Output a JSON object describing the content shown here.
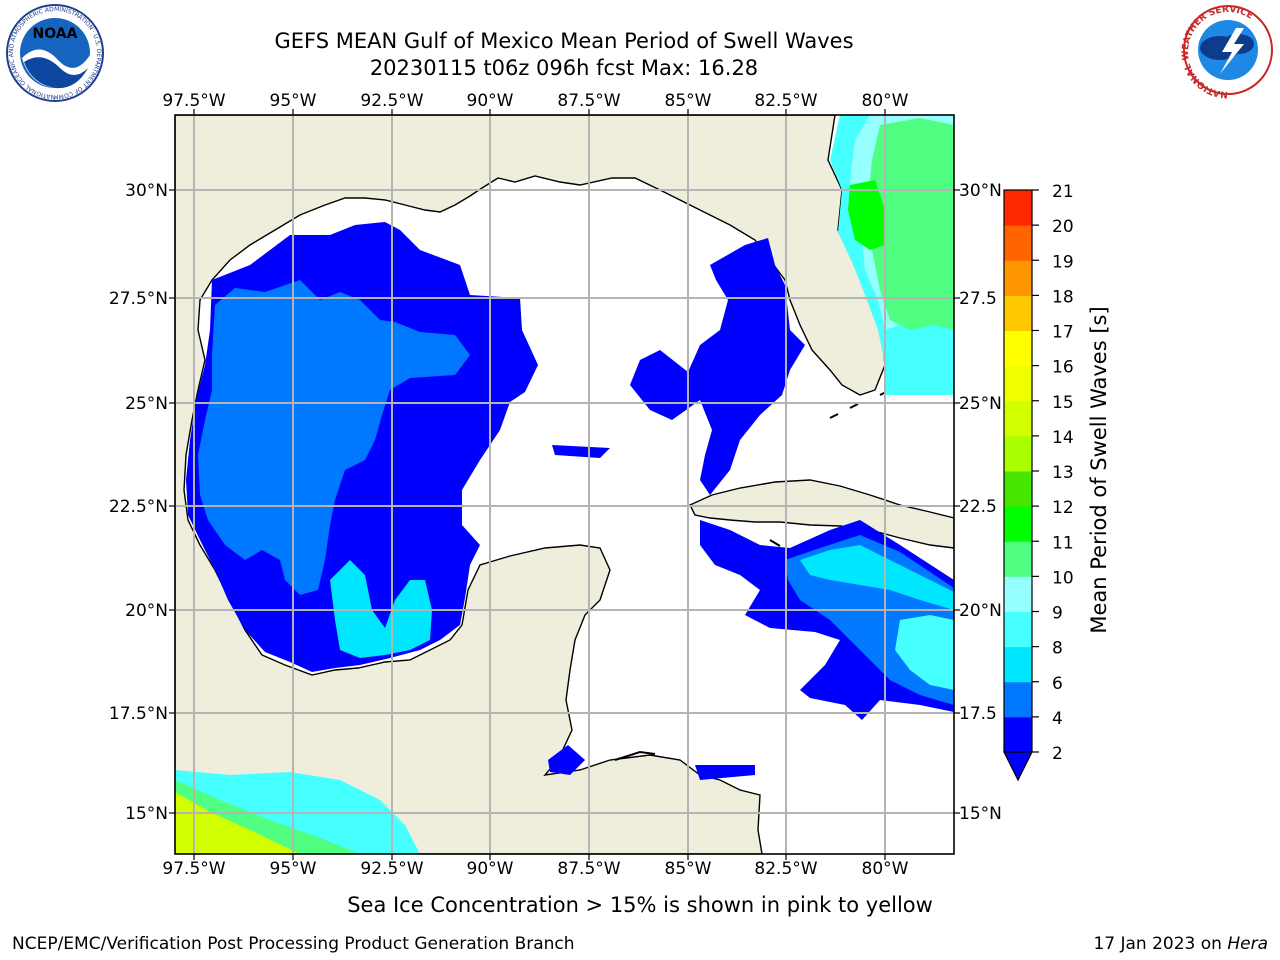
{
  "title": {
    "line1": "GEFS MEAN Gulf of Mexico Mean Period of Swell Waves",
    "line2": "20230115 t06z 096h fcst   Max: 16.28"
  },
  "map": {
    "lon_ticks": [
      "97.5°W",
      "95°W",
      "92.5°W",
      "90°W",
      "87.5°W",
      "85°W",
      "82.5°W",
      "80°W"
    ],
    "lat_ticks_left": [
      "30°N",
      "27.5°N",
      "25°N",
      "22.5°N",
      "20°N",
      "17.5°N",
      "15°N"
    ],
    "lat_ticks_right": [
      "30°N",
      "27.5",
      "25°N",
      "22.5",
      "20°N",
      "17.5",
      "15°N"
    ],
    "land_color": "#efeedc",
    "grid_color": "#b4b4b4"
  },
  "colorbar": {
    "label": "Mean Period of Swell Waves [s]",
    "ticks": [
      "2",
      "4",
      "6",
      "8",
      "9",
      "10",
      "11",
      "12",
      "13",
      "14",
      "15",
      "16",
      "17",
      "18",
      "19",
      "20",
      "21"
    ],
    "colors": [
      "#0000ff",
      "#0078ff",
      "#00e6ff",
      "#46ffff",
      "#96ffff",
      "#50ff82",
      "#00ff00",
      "#46e600",
      "#aaff00",
      "#d2ff00",
      "#f0ff00",
      "#ffff00",
      "#ffc800",
      "#ff9600",
      "#ff6400",
      "#ff2800"
    ]
  },
  "logos": {
    "noaa_text": "NOAA",
    "noaa_ring": "NATIONAL OCEANIC AND ATMOSPHERIC ADMINISTRATION · U.S. DEPARTMENT OF COMMERCE",
    "nws_ring": "NATIONAL WEATHER SERVICE"
  },
  "footer": {
    "note": "Sea Ice Concentration > 15% is shown in pink to yellow",
    "credit": "NCEP/EMC/Verification Post Processing Product Generation Branch",
    "date_prefix": "17 Jan 2023 on ",
    "date_host": "Hera"
  }
}
